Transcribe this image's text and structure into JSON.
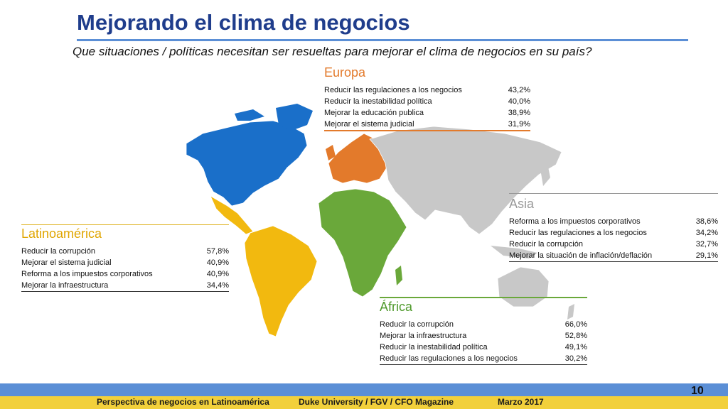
{
  "header": {
    "title": "Mejorando el clima de negocios",
    "subtitle": "Que situaciones / políticas necesitan ser resueltas para mejorar el clima de negocios en su país?"
  },
  "regions": {
    "europa": {
      "name": "Europa",
      "color": "#e37a2b",
      "rows": [
        {
          "label": "Reducir las regulaciones a los negocios",
          "value": "43,2%"
        },
        {
          "label": "Reducir la inestabilidad política",
          "value": "40,0%"
        },
        {
          "label": "Mejorar la educación publica",
          "value": "38,9%"
        },
        {
          "label": "Mejorar el sistema judicial",
          "value": "31,9%"
        }
      ]
    },
    "asia": {
      "name": "Asia",
      "color": "#bbbbbb",
      "rows": [
        {
          "label": "Reforma a los impuestos corporativos",
          "value": "38,6%"
        },
        {
          "label": "Reducir las regulaciones a los negocios",
          "value": "34,2%"
        },
        {
          "label": "Reducir la corrupción",
          "value": "32,7%"
        },
        {
          "label": "Mejorar la situación de inflación/deflación",
          "value": "29,1%"
        }
      ]
    },
    "latinoamerica": {
      "name": "Latinoamérica",
      "color": "#f2b90f",
      "rows": [
        {
          "label": "Reducir la corrupción",
          "value": "57,8%"
        },
        {
          "label": "Mejorar el sistema judicial",
          "value": "40,9%"
        },
        {
          "label": "Reforma a los impuestos corporativos",
          "value": "40,9%"
        },
        {
          "label": "Mejorar la infraestructura",
          "value": "34,4%"
        }
      ]
    },
    "africa": {
      "name": "África",
      "color": "#6aa83a",
      "rows": [
        {
          "label": "Reducir la corrupción",
          "value": "66,0%"
        },
        {
          "label": "Mejorar la infraestructura",
          "value": "52,8%"
        },
        {
          "label": "Reducir la inestabilidad política",
          "value": "49,1%"
        },
        {
          "label": "Reducir las regulaciones a los negocios",
          "value": "30,2%"
        }
      ]
    },
    "north_america": {
      "color": "#1a6fc9"
    }
  },
  "footer": {
    "left": "Perspectiva de negocios en Latinoamérica",
    "center": "Duke University / FGV / CFO Magazine",
    "right": "Marzo 2017",
    "page": "10"
  }
}
